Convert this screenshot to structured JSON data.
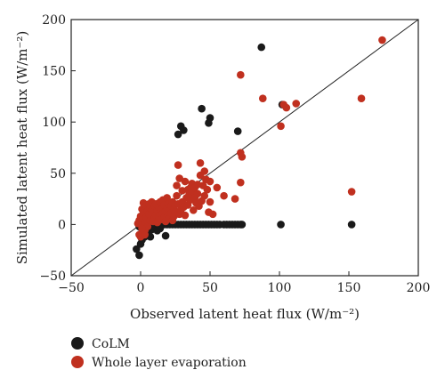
{
  "chart_data": {
    "type": "scatter",
    "xlabel": "Observed latent heat flux (W/m⁻²)",
    "ylabel": "Simulated latent heat flux (W/m⁻²)",
    "xlim": [
      -50,
      200
    ],
    "ylim": [
      -50,
      200
    ],
    "xticks": [
      "−50",
      "0",
      "50",
      "100",
      "150",
      "200"
    ],
    "yticks": [
      "−50",
      "0",
      "50",
      "100",
      "150",
      "200"
    ],
    "xtick_values": [
      -50,
      0,
      50,
      100,
      150,
      200
    ],
    "ytick_values": [
      -50,
      0,
      50,
      100,
      150,
      200
    ],
    "grid": false,
    "reference_line": "1:1",
    "legend_position": "below",
    "series": [
      {
        "name": "CoLM",
        "color": "#1a1a1a",
        "points": [
          [
            -3,
            -24
          ],
          [
            -1,
            -30
          ],
          [
            0,
            -19
          ],
          [
            1,
            -15
          ],
          [
            3,
            -12
          ],
          [
            5,
            -10
          ],
          [
            7,
            -12
          ],
          [
            4,
            -6
          ],
          [
            6,
            -4
          ],
          [
            2,
            -8
          ],
          [
            -1,
            -2
          ],
          [
            0,
            -3
          ],
          [
            2,
            -2
          ],
          [
            8,
            -5
          ],
          [
            10,
            -1
          ],
          [
            9,
            -3
          ],
          [
            10,
            0
          ],
          [
            13,
            0
          ],
          [
            15,
            0
          ],
          [
            17,
            0
          ],
          [
            19,
            0
          ],
          [
            21,
            0
          ],
          [
            23,
            0
          ],
          [
            25,
            0
          ],
          [
            27,
            0
          ],
          [
            29,
            0
          ],
          [
            31,
            0
          ],
          [
            33,
            0
          ],
          [
            35,
            0
          ],
          [
            37,
            0
          ],
          [
            39,
            0
          ],
          [
            41,
            0
          ],
          [
            43,
            0
          ],
          [
            45,
            0
          ],
          [
            47,
            0
          ],
          [
            49,
            0
          ],
          [
            51,
            0
          ],
          [
            53,
            0
          ],
          [
            55,
            0
          ],
          [
            57,
            0
          ],
          [
            60,
            0
          ],
          [
            62,
            0
          ],
          [
            64,
            0
          ],
          [
            66,
            0
          ],
          [
            68,
            0
          ],
          [
            70,
            0
          ],
          [
            72,
            0
          ],
          [
            73,
            0
          ],
          [
            101,
            0
          ],
          [
            152,
            0
          ],
          [
            18,
            -11
          ],
          [
            12,
            -6
          ],
          [
            14,
            -4
          ],
          [
            27,
            88
          ],
          [
            29,
            96
          ],
          [
            31,
            92
          ],
          [
            44,
            113
          ],
          [
            49,
            99
          ],
          [
            50,
            104
          ],
          [
            70,
            91
          ],
          [
            87,
            173
          ],
          [
            102,
            117
          ]
        ]
      },
      {
        "name": "Whole layer evaporation",
        "color": "#c0301f",
        "points": [
          [
            -2,
            1
          ],
          [
            -1,
            4
          ],
          [
            0,
            8
          ],
          [
            0,
            2
          ],
          [
            1,
            15
          ],
          [
            1,
            6
          ],
          [
            2,
            21
          ],
          [
            2,
            11
          ],
          [
            3,
            -6
          ],
          [
            3,
            2
          ],
          [
            4,
            18
          ],
          [
            4,
            7
          ],
          [
            5,
            13
          ],
          [
            5,
            -2
          ],
          [
            6,
            20
          ],
          [
            6,
            10
          ],
          [
            7,
            16
          ],
          [
            7,
            4
          ],
          [
            8,
            14
          ],
          [
            8,
            22
          ],
          [
            9,
            12
          ],
          [
            9,
            3
          ],
          [
            10,
            18
          ],
          [
            10,
            6
          ],
          [
            11,
            9
          ],
          [
            11,
            20
          ],
          [
            12,
            14
          ],
          [
            12,
            2
          ],
          [
            13,
            8
          ],
          [
            13,
            17
          ],
          [
            14,
            10
          ],
          [
            14,
            22
          ],
          [
            15,
            5
          ],
          [
            15,
            15
          ],
          [
            16,
            11
          ],
          [
            16,
            24
          ],
          [
            17,
            7
          ],
          [
            17,
            19
          ],
          [
            18,
            13
          ],
          [
            18,
            3
          ],
          [
            19,
            16
          ],
          [
            19,
            26
          ],
          [
            20,
            9
          ],
          [
            20,
            20
          ],
          [
            21,
            14
          ],
          [
            21,
            6
          ],
          [
            22,
            18
          ],
          [
            22,
            11
          ],
          [
            23,
            22
          ],
          [
            23,
            4
          ],
          [
            24,
            15
          ],
          [
            24,
            8
          ],
          [
            25,
            19
          ],
          [
            25,
            12
          ],
          [
            26,
            28
          ],
          [
            26,
            38
          ],
          [
            27,
            20
          ],
          [
            27,
            58
          ],
          [
            28,
            45
          ],
          [
            28,
            10
          ],
          [
            29,
            14
          ],
          [
            30,
            33
          ],
          [
            30,
            22
          ],
          [
            31,
            17
          ],
          [
            32,
            42
          ],
          [
            32,
            9
          ],
          [
            33,
            26
          ],
          [
            34,
            19
          ],
          [
            34,
            34
          ],
          [
            35,
            30
          ],
          [
            36,
            36
          ],
          [
            36,
            24
          ],
          [
            37,
            28
          ],
          [
            37,
            40
          ],
          [
            38,
            14
          ],
          [
            38,
            32
          ],
          [
            39,
            26
          ],
          [
            39,
            36
          ],
          [
            40,
            21
          ],
          [
            41,
            30
          ],
          [
            41,
            39
          ],
          [
            42,
            18
          ],
          [
            43,
            48
          ],
          [
            43,
            60
          ],
          [
            44,
            23
          ],
          [
            45,
            38
          ],
          [
            46,
            52
          ],
          [
            46,
            28
          ],
          [
            47,
            44
          ],
          [
            48,
            34
          ],
          [
            49,
            12
          ],
          [
            50,
            42
          ],
          [
            50,
            22
          ],
          [
            52,
            10
          ],
          [
            55,
            36
          ],
          [
            60,
            28
          ],
          [
            68,
            25
          ],
          [
            72,
            41
          ],
          [
            73,
            66
          ],
          [
            72,
            70
          ],
          [
            72,
            146
          ],
          [
            88,
            123
          ],
          [
            101,
            96
          ],
          [
            103,
            117
          ],
          [
            105,
            114
          ],
          [
            112,
            118
          ],
          [
            152,
            32
          ],
          [
            159,
            123
          ],
          [
            174,
            180
          ],
          [
            -1,
            -10
          ],
          [
            0,
            -12
          ],
          [
            3,
            -10
          ],
          [
            1,
            -4
          ]
        ]
      }
    ]
  }
}
